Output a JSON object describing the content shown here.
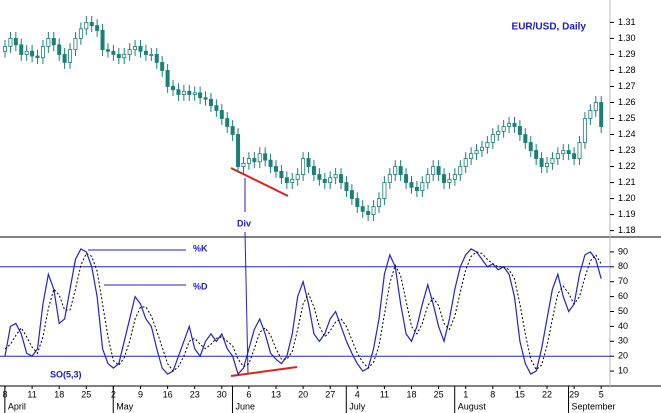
{
  "chart_data": [
    {
      "type": "candlestick",
      "title": "EUR/USD, Daily",
      "annotation": "Div",
      "color": "#1b8077",
      "categories": [
        "8",
        null,
        null,
        null,
        null,
        "11",
        null,
        null,
        null,
        null,
        "18",
        null,
        null,
        null,
        null,
        "25",
        null,
        null,
        null,
        null,
        "2",
        null,
        null,
        null,
        null,
        "9",
        null,
        null,
        null,
        null,
        "16",
        null,
        null,
        null,
        null,
        "23",
        null,
        null,
        null,
        null,
        "30",
        null,
        null,
        null,
        null,
        "6",
        null,
        null,
        null,
        null,
        "13",
        null,
        null,
        null,
        null,
        "20",
        null,
        null,
        null,
        null,
        "27",
        null,
        null,
        null,
        null,
        "4",
        null,
        null,
        null,
        null,
        "11",
        null,
        null,
        null,
        null,
        "18",
        null,
        null,
        null,
        null,
        "25",
        null,
        null,
        null,
        null,
        "1",
        null,
        null,
        null,
        null,
        "8",
        null,
        null,
        null,
        null,
        "15",
        null,
        null,
        null,
        null,
        "22",
        null,
        null,
        null,
        null,
        "29",
        null,
        null,
        null,
        null,
        "5"
      ],
      "months": [
        null,
        null,
        "April",
        null,
        null,
        null,
        null,
        null,
        null,
        null,
        null,
        null,
        null,
        null,
        null,
        null,
        null,
        null,
        null,
        null,
        null,
        null,
        "May",
        null,
        null,
        null,
        null,
        null,
        null,
        null,
        null,
        null,
        null,
        null,
        null,
        null,
        null,
        null,
        null,
        null,
        null,
        null,
        null,
        null,
        "June",
        null,
        null,
        null,
        null,
        null,
        null,
        null,
        null,
        null,
        null,
        null,
        null,
        null,
        null,
        null,
        null,
        null,
        null,
        null,
        null,
        "July",
        null,
        null,
        null,
        null,
        null,
        null,
        null,
        null,
        null,
        null,
        null,
        null,
        null,
        null,
        null,
        null,
        null,
        null,
        null,
        "August",
        null,
        null,
        null,
        null,
        null,
        null,
        null,
        null,
        null,
        null,
        null,
        null,
        null,
        null,
        null,
        null,
        null,
        null,
        null,
        null,
        "September",
        null,
        null,
        null
      ],
      "open": [
        1.292,
        1.295,
        1.3,
        1.296,
        1.29,
        1.292,
        1.289,
        1.288,
        1.295,
        1.3,
        1.296,
        1.29,
        1.285,
        1.293,
        1.3,
        1.306,
        1.31,
        1.308,
        1.305,
        1.293,
        1.292,
        1.29,
        1.288,
        1.29,
        1.293,
        1.295,
        1.292,
        1.29,
        1.29,
        1.285,
        1.28,
        1.27,
        1.268,
        1.265,
        1.267,
        1.265,
        1.266,
        1.263,
        1.262,
        1.258,
        1.255,
        1.25,
        1.245,
        1.24,
        1.22,
        1.222,
        1.225,
        1.223,
        1.228,
        1.224,
        1.22,
        1.217,
        1.213,
        1.21,
        1.212,
        1.215,
        1.225,
        1.22,
        1.215,
        1.212,
        1.21,
        1.213,
        1.215,
        1.21,
        1.205,
        1.2,
        1.195,
        1.192,
        1.19,
        1.195,
        1.2,
        1.21,
        1.215,
        1.22,
        1.215,
        1.21,
        1.207,
        1.205,
        1.21,
        1.215,
        1.22,
        1.215,
        1.21,
        1.212,
        1.215,
        1.22,
        1.225,
        1.228,
        1.23,
        1.232,
        1.235,
        1.24,
        1.242,
        1.245,
        1.247,
        1.245,
        1.24,
        1.235,
        1.23,
        1.225,
        1.22,
        1.222,
        1.225,
        1.228,
        1.23,
        1.228,
        1.225,
        1.235,
        1.25,
        1.255,
        1.26
      ],
      "high": [
        1.299,
        1.304,
        1.304,
        1.3,
        1.296,
        1.296,
        1.293,
        1.299,
        1.304,
        1.304,
        1.3,
        1.294,
        1.297,
        1.304,
        1.31,
        1.314,
        1.314,
        1.312,
        1.309,
        1.297,
        1.296,
        1.294,
        1.294,
        1.297,
        1.299,
        1.299,
        1.296,
        1.294,
        1.294,
        1.289,
        1.284,
        1.274,
        1.272,
        1.271,
        1.271,
        1.27,
        1.27,
        1.267,
        1.266,
        1.262,
        1.259,
        1.254,
        1.249,
        1.244,
        1.226,
        1.229,
        1.229,
        1.232,
        1.232,
        1.228,
        1.224,
        1.221,
        1.217,
        1.216,
        1.219,
        1.229,
        1.229,
        1.224,
        1.219,
        1.216,
        1.217,
        1.219,
        1.219,
        1.214,
        1.209,
        1.204,
        1.199,
        1.196,
        1.199,
        1.204,
        1.214,
        1.219,
        1.224,
        1.224,
        1.219,
        1.214,
        1.211,
        1.214,
        1.219,
        1.224,
        1.224,
        1.219,
        1.216,
        1.219,
        1.224,
        1.229,
        1.232,
        1.234,
        1.236,
        1.239,
        1.244,
        1.246,
        1.249,
        1.251,
        1.251,
        1.249,
        1.244,
        1.239,
        1.234,
        1.229,
        1.226,
        1.229,
        1.232,
        1.234,
        1.234,
        1.232,
        1.239,
        1.254,
        1.259,
        1.264,
        1.264
      ],
      "low": [
        1.288,
        1.291,
        1.292,
        1.286,
        1.286,
        1.285,
        1.284,
        1.284,
        1.291,
        1.292,
        1.286,
        1.281,
        1.281,
        1.289,
        1.296,
        1.302,
        1.304,
        1.301,
        1.289,
        1.288,
        1.286,
        1.284,
        1.284,
        1.286,
        1.289,
        1.288,
        1.286,
        1.286,
        1.281,
        1.276,
        1.266,
        1.264,
        1.261,
        1.261,
        1.261,
        1.261,
        1.259,
        1.258,
        1.254,
        1.251,
        1.246,
        1.241,
        1.236,
        1.216,
        1.216,
        1.218,
        1.219,
        1.219,
        1.22,
        1.216,
        1.213,
        1.209,
        1.206,
        1.206,
        1.208,
        1.211,
        1.216,
        1.211,
        1.208,
        1.206,
        1.206,
        1.209,
        1.206,
        1.201,
        1.196,
        1.191,
        1.188,
        1.186,
        1.186,
        1.191,
        1.196,
        1.206,
        1.211,
        1.211,
        1.206,
        1.203,
        1.201,
        1.201,
        1.206,
        1.211,
        1.211,
        1.206,
        1.206,
        1.208,
        1.211,
        1.216,
        1.221,
        1.224,
        1.226,
        1.228,
        1.231,
        1.236,
        1.238,
        1.241,
        1.241,
        1.236,
        1.231,
        1.226,
        1.221,
        1.216,
        1.216,
        1.218,
        1.221,
        1.224,
        1.224,
        1.221,
        1.221,
        1.231,
        1.246,
        1.251,
        1.241
      ],
      "close": [
        1.295,
        1.3,
        1.296,
        1.29,
        1.292,
        1.289,
        1.288,
        1.295,
        1.3,
        1.296,
        1.29,
        1.285,
        1.293,
        1.3,
        1.306,
        1.31,
        1.308,
        1.305,
        1.293,
        1.292,
        1.29,
        1.288,
        1.29,
        1.293,
        1.295,
        1.292,
        1.29,
        1.29,
        1.285,
        1.28,
        1.27,
        1.268,
        1.265,
        1.267,
        1.265,
        1.266,
        1.263,
        1.262,
        1.258,
        1.255,
        1.25,
        1.245,
        1.24,
        1.22,
        1.222,
        1.225,
        1.223,
        1.228,
        1.224,
        1.22,
        1.217,
        1.213,
        1.21,
        1.212,
        1.215,
        1.225,
        1.22,
        1.215,
        1.212,
        1.21,
        1.213,
        1.215,
        1.21,
        1.205,
        1.2,
        1.195,
        1.192,
        1.19,
        1.195,
        1.2,
        1.21,
        1.215,
        1.22,
        1.215,
        1.21,
        1.207,
        1.205,
        1.21,
        1.215,
        1.22,
        1.215,
        1.21,
        1.212,
        1.215,
        1.22,
        1.225,
        1.228,
        1.23,
        1.232,
        1.235,
        1.24,
        1.242,
        1.245,
        1.247,
        1.245,
        1.24,
        1.235,
        1.23,
        1.225,
        1.22,
        1.222,
        1.225,
        1.228,
        1.23,
        1.228,
        1.225,
        1.235,
        1.25,
        1.255,
        1.26,
        1.245
      ],
      "ylim": [
        1.176,
        1.324
      ],
      "yticks": [
        1.18,
        1.19,
        {
          "value": 1.2,
          "label": "1.20"
        },
        1.21,
        1.22,
        1.23,
        1.24,
        1.25,
        1.26,
        1.27,
        1.28,
        1.29,
        {
          "value": 1.3,
          "label": "1.30"
        },
        1.31
      ]
    },
    {
      "type": "line",
      "label": "SO(5,3)",
      "series": [
        {
          "name": "%K",
          "color": "#2323c8",
          "dash": false,
          "values": [
            20,
            40,
            42,
            35,
            22,
            20,
            25,
            55,
            75,
            65,
            42,
            45,
            65,
            85,
            92,
            90,
            80,
            60,
            25,
            15,
            12,
            15,
            30,
            45,
            60,
            55,
            45,
            40,
            25,
            12,
            8,
            10,
            20,
            30,
            40,
            25,
            20,
            30,
            35,
            30,
            35,
            25,
            20,
            8,
            12,
            25,
            38,
            45,
            35,
            22,
            18,
            15,
            20,
            35,
            60,
            70,
            55,
            35,
            30,
            35,
            45,
            50,
            40,
            30,
            22,
            15,
            10,
            12,
            25,
            45,
            75,
            88,
            80,
            55,
            35,
            30,
            40,
            55,
            68,
            55,
            40,
            30,
            45,
            65,
            80,
            88,
            92,
            90,
            85,
            80,
            82,
            78,
            80,
            75,
            60,
            30,
            15,
            8,
            10,
            25,
            45,
            65,
            75,
            60,
            50,
            55,
            75,
            88,
            90,
            85,
            72
          ]
        },
        {
          "name": "%D",
          "color": "#000000",
          "dash": true,
          "values": [
            25,
            28,
            34,
            39,
            33,
            26,
            22,
            33,
            52,
            65,
            61,
            51,
            51,
            65,
            81,
            89,
            87,
            77,
            55,
            33,
            17,
            14,
            19,
            30,
            45,
            53,
            53,
            47,
            37,
            26,
            15,
            10,
            13,
            20,
            30,
            32,
            28,
            25,
            28,
            32,
            33,
            30,
            27,
            18,
            13,
            15,
            25,
            36,
            39,
            34,
            25,
            18,
            18,
            23,
            38,
            55,
            62,
            53,
            40,
            33,
            37,
            43,
            45,
            40,
            31,
            22,
            16,
            12,
            16,
            27,
            48,
            69,
            81,
            74,
            57,
            40,
            35,
            42,
            54,
            59,
            54,
            42,
            38,
            47,
            63,
            78,
            87,
            90,
            89,
            85,
            82,
            80,
            80,
            78,
            72,
            55,
            35,
            18,
            11,
            14,
            27,
            45,
            62,
            67,
            62,
            55,
            60,
            73,
            84,
            88,
            82
          ]
        }
      ],
      "levels": [
        20,
        80
      ],
      "level_color": "#2323c8",
      "ylim": [
        0,
        100
      ],
      "yticks": [
        10,
        20,
        30,
        40,
        50,
        60,
        70,
        80,
        90
      ]
    }
  ]
}
